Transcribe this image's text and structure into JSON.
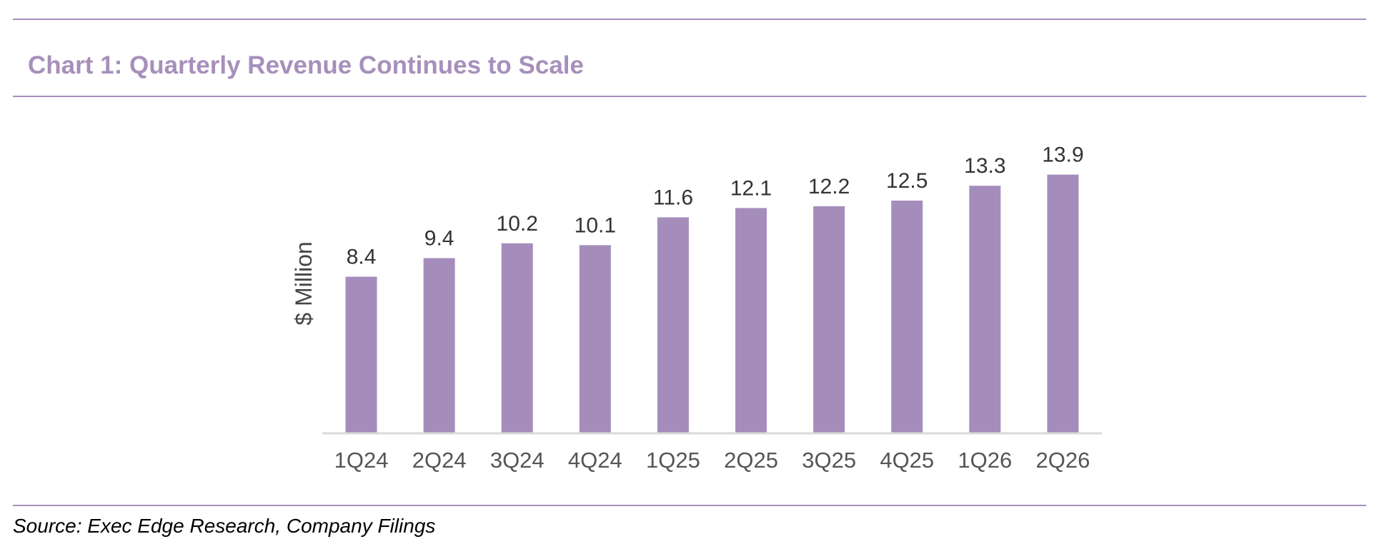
{
  "header": {
    "title": "Chart 1: Quarterly Revenue Continues to Scale"
  },
  "footer": {
    "source": "Source: Exec Edge Research, Company Filings"
  },
  "colors": {
    "accent": "#a78fbb",
    "bar": "#a58dbb",
    "axis": "#d9d9d9"
  },
  "chart_data": {
    "type": "bar",
    "title": "Chart 1: Quarterly Revenue Continues to Scale",
    "xlabel": "",
    "ylabel": "$ Million",
    "categories": [
      "1Q24",
      "2Q24",
      "3Q24",
      "4Q24",
      "1Q25",
      "2Q25",
      "3Q25",
      "4Q25",
      "1Q26",
      "2Q26"
    ],
    "values": [
      8.4,
      9.4,
      10.2,
      10.1,
      11.6,
      12.1,
      12.2,
      12.5,
      13.3,
      13.9
    ],
    "data_labels": [
      "8.4",
      "9.4",
      "10.2",
      "10.1",
      "11.6",
      "12.1",
      "12.2",
      "12.5",
      "13.3",
      "13.9"
    ],
    "ylim": [
      0,
      15
    ],
    "grid": false,
    "legend": "none"
  }
}
